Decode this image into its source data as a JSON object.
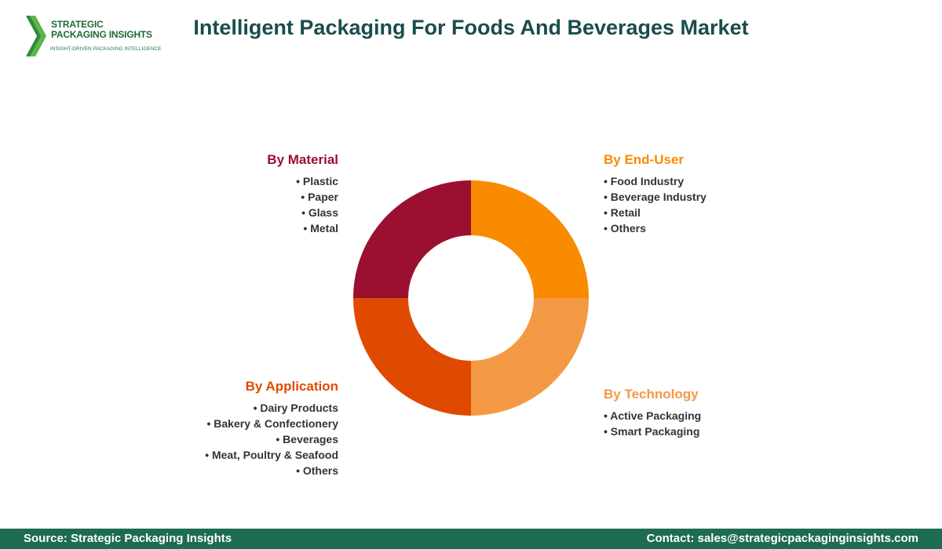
{
  "header": {
    "logo": {
      "line1": "STRATEGIC",
      "line2": "PACKAGING INSIGHTS",
      "tagline": "INSIGHT-DRIVEN PACKAGING INTELLIGENCE",
      "icon": "chevron-arrow-icon"
    },
    "title": "Intelligent Packaging For Foods And Beverages Market"
  },
  "segments": {
    "material": {
      "title": "By Material",
      "color": "#9b1030",
      "items": [
        "Plastic",
        "Paper",
        "Glass",
        "Metal"
      ]
    },
    "end_user": {
      "title": "By End-User",
      "color": "#f98b00",
      "items": [
        "Food Industry",
        "Beverage Industry",
        "Retail",
        "Others"
      ]
    },
    "application": {
      "title": "By Application",
      "color": "#e04a00",
      "items": [
        "Dairy Products",
        "Bakery & Confectionery",
        "Beverages",
        "Meat, Poultry & Seafood",
        "Others"
      ]
    },
    "technology": {
      "title": "By Technology",
      "color": "#f49a44",
      "items": [
        "Active Packaging",
        "Smart Packaging"
      ]
    }
  },
  "chart_data": {
    "type": "pie",
    "donut": true,
    "categories": [
      "By End-User",
      "By Technology",
      "By Application",
      "By Material"
    ],
    "values": [
      25,
      25,
      25,
      25
    ],
    "colors": [
      "#f98b00",
      "#f49a44",
      "#e04a00",
      "#9b1030"
    ]
  },
  "footer": {
    "source": "Source: Strategic Packaging Insights",
    "contact": "Contact: sales@strategicpackaginginsights.com"
  }
}
